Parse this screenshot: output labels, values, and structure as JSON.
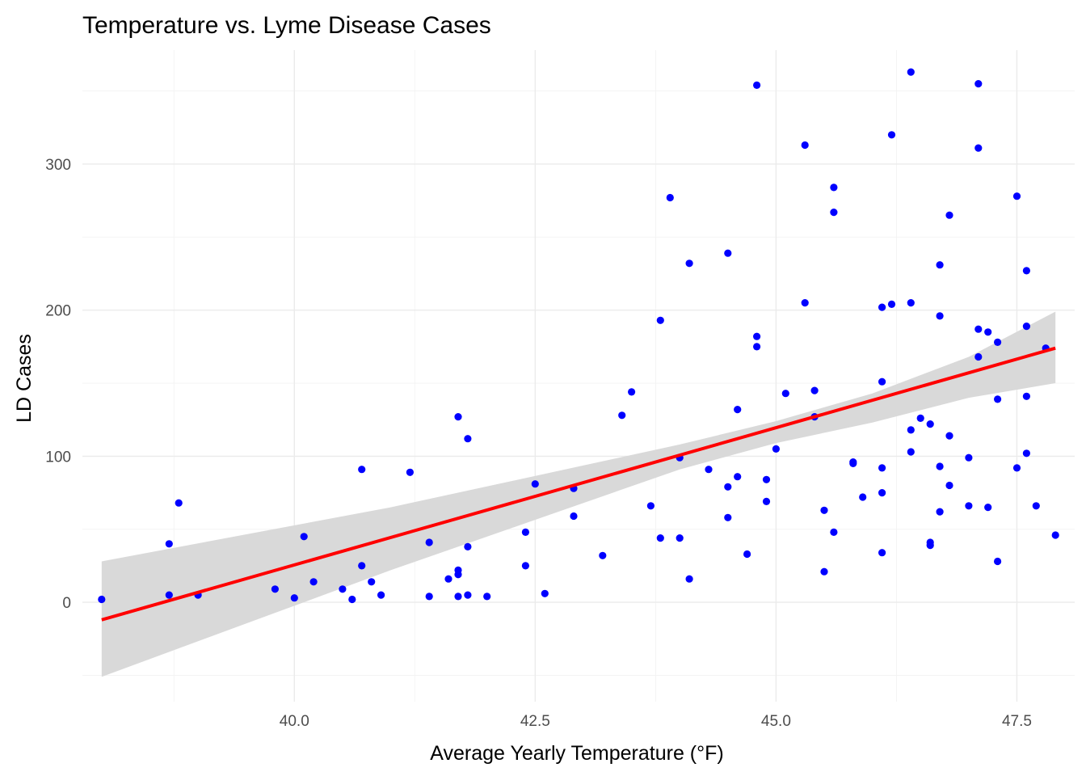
{
  "chart_data": {
    "type": "scatter",
    "title": "Temperature vs. Lyme Disease Cases",
    "xlabel": "Average Yearly Temperature (°F)",
    "ylabel": "LD Cases",
    "xlim": [
      37.8,
      48.1
    ],
    "ylim": [
      -68,
      378
    ],
    "x_ticks": [
      40.0,
      42.5,
      45.0,
      47.5
    ],
    "x_tick_labels": [
      "40.0",
      "42.5",
      "45.0",
      "47.5"
    ],
    "y_ticks": [
      0,
      100,
      200,
      300
    ],
    "y_tick_labels": [
      "0",
      "100",
      "200",
      "300"
    ],
    "grid": true,
    "legend": "none",
    "point_color": "#0000ff",
    "line_color": "#ff0000",
    "ribbon_color": "#d9d9d9",
    "regression": {
      "x_start": 38.0,
      "x_end": 47.9,
      "y_start": -12,
      "y_end": 174
    },
    "confidence_band": {
      "x": [
        38.0,
        41.0,
        44.0,
        45.0,
        46.0,
        47.0,
        47.9
      ],
      "upper": [
        28,
        65,
        108,
        124,
        143,
        168,
        199
      ],
      "lower": [
        -51,
        22,
        91,
        109,
        123,
        140,
        150
      ]
    },
    "points": [
      {
        "x": 38.0,
        "y": 2
      },
      {
        "x": 38.7,
        "y": 40
      },
      {
        "x": 38.7,
        "y": 5
      },
      {
        "x": 38.8,
        "y": 68
      },
      {
        "x": 39.0,
        "y": 5
      },
      {
        "x": 39.8,
        "y": 9
      },
      {
        "x": 40.0,
        "y": 3
      },
      {
        "x": 40.1,
        "y": 45
      },
      {
        "x": 40.2,
        "y": 14
      },
      {
        "x": 40.5,
        "y": 9
      },
      {
        "x": 40.6,
        "y": 2
      },
      {
        "x": 40.7,
        "y": 91
      },
      {
        "x": 40.7,
        "y": 25
      },
      {
        "x": 40.8,
        "y": 14
      },
      {
        "x": 40.9,
        "y": 5
      },
      {
        "x": 41.2,
        "y": 89
      },
      {
        "x": 41.4,
        "y": 41
      },
      {
        "x": 41.4,
        "y": 4
      },
      {
        "x": 41.6,
        "y": 16
      },
      {
        "x": 41.7,
        "y": 127
      },
      {
        "x": 41.7,
        "y": 22
      },
      {
        "x": 41.7,
        "y": 19
      },
      {
        "x": 41.7,
        "y": 4
      },
      {
        "x": 41.8,
        "y": 112
      },
      {
        "x": 41.8,
        "y": 38
      },
      {
        "x": 41.8,
        "y": 5
      },
      {
        "x": 42.0,
        "y": 4
      },
      {
        "x": 42.4,
        "y": 48
      },
      {
        "x": 42.4,
        "y": 25
      },
      {
        "x": 42.5,
        "y": 81
      },
      {
        "x": 42.6,
        "y": 6
      },
      {
        "x": 42.9,
        "y": 78
      },
      {
        "x": 42.9,
        "y": 59
      },
      {
        "x": 43.2,
        "y": 32
      },
      {
        "x": 43.4,
        "y": 128
      },
      {
        "x": 43.5,
        "y": 144
      },
      {
        "x": 43.7,
        "y": 66
      },
      {
        "x": 43.8,
        "y": 193
      },
      {
        "x": 43.8,
        "y": 44
      },
      {
        "x": 43.9,
        "y": 277
      },
      {
        "x": 44.0,
        "y": 99
      },
      {
        "x": 44.0,
        "y": 44
      },
      {
        "x": 44.1,
        "y": 232
      },
      {
        "x": 44.1,
        "y": 16
      },
      {
        "x": 44.3,
        "y": 91
      },
      {
        "x": 44.5,
        "y": 239
      },
      {
        "x": 44.5,
        "y": 79
      },
      {
        "x": 44.5,
        "y": 58
      },
      {
        "x": 44.6,
        "y": 132
      },
      {
        "x": 44.6,
        "y": 86
      },
      {
        "x": 44.7,
        "y": 33
      },
      {
        "x": 44.8,
        "y": 354
      },
      {
        "x": 44.8,
        "y": 182
      },
      {
        "x": 44.8,
        "y": 175
      },
      {
        "x": 44.9,
        "y": 84
      },
      {
        "x": 44.9,
        "y": 69
      },
      {
        "x": 45.0,
        "y": 105
      },
      {
        "x": 45.1,
        "y": 143
      },
      {
        "x": 45.3,
        "y": 313
      },
      {
        "x": 45.3,
        "y": 205
      },
      {
        "x": 45.4,
        "y": 145
      },
      {
        "x": 45.4,
        "y": 127
      },
      {
        "x": 45.5,
        "y": 63
      },
      {
        "x": 45.5,
        "y": 21
      },
      {
        "x": 45.6,
        "y": 284
      },
      {
        "x": 45.6,
        "y": 267
      },
      {
        "x": 45.6,
        "y": 48
      },
      {
        "x": 45.8,
        "y": 96
      },
      {
        "x": 45.8,
        "y": 95
      },
      {
        "x": 45.9,
        "y": 72
      },
      {
        "x": 46.1,
        "y": 202
      },
      {
        "x": 46.1,
        "y": 151
      },
      {
        "x": 46.1,
        "y": 92
      },
      {
        "x": 46.1,
        "y": 75
      },
      {
        "x": 46.1,
        "y": 34
      },
      {
        "x": 46.2,
        "y": 320
      },
      {
        "x": 46.2,
        "y": 204
      },
      {
        "x": 46.4,
        "y": 363
      },
      {
        "x": 46.4,
        "y": 205
      },
      {
        "x": 46.4,
        "y": 118
      },
      {
        "x": 46.4,
        "y": 103
      },
      {
        "x": 46.5,
        "y": 126
      },
      {
        "x": 46.6,
        "y": 122
      },
      {
        "x": 46.6,
        "y": 41
      },
      {
        "x": 46.6,
        "y": 39
      },
      {
        "x": 46.7,
        "y": 231
      },
      {
        "x": 46.7,
        "y": 196
      },
      {
        "x": 46.7,
        "y": 93
      },
      {
        "x": 46.7,
        "y": 62
      },
      {
        "x": 46.8,
        "y": 265
      },
      {
        "x": 46.8,
        "y": 114
      },
      {
        "x": 46.8,
        "y": 80
      },
      {
        "x": 47.0,
        "y": 99
      },
      {
        "x": 47.0,
        "y": 66
      },
      {
        "x": 47.1,
        "y": 355
      },
      {
        "x": 47.1,
        "y": 311
      },
      {
        "x": 47.1,
        "y": 187
      },
      {
        "x": 47.1,
        "y": 168
      },
      {
        "x": 47.2,
        "y": 185
      },
      {
        "x": 47.2,
        "y": 65
      },
      {
        "x": 47.3,
        "y": 178
      },
      {
        "x": 47.3,
        "y": 139
      },
      {
        "x": 47.3,
        "y": 28
      },
      {
        "x": 47.5,
        "y": 278
      },
      {
        "x": 47.5,
        "y": 92
      },
      {
        "x": 47.6,
        "y": 227
      },
      {
        "x": 47.6,
        "y": 189
      },
      {
        "x": 47.6,
        "y": 141
      },
      {
        "x": 47.6,
        "y": 102
      },
      {
        "x": 47.7,
        "y": 66
      },
      {
        "x": 47.8,
        "y": 174
      },
      {
        "x": 47.9,
        "y": 46
      }
    ]
  }
}
